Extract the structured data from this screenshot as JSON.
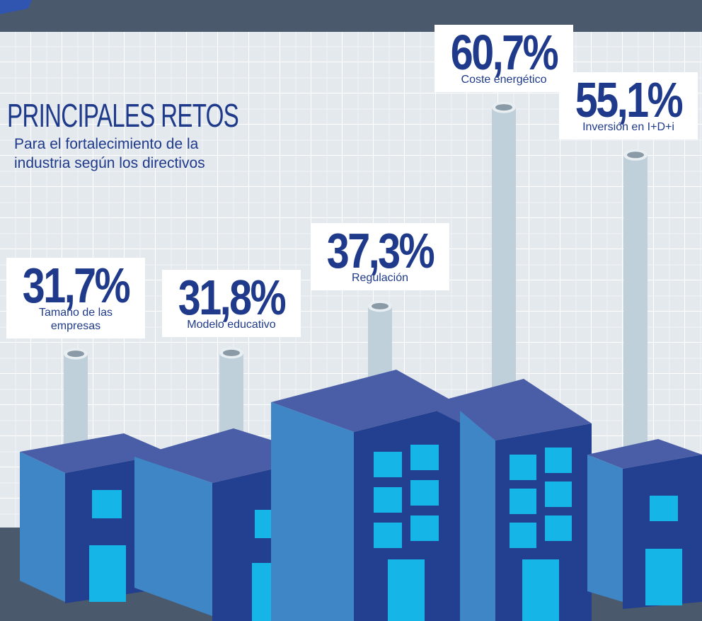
{
  "chart_data": {
    "type": "bar",
    "title": "PRINCIPALES RETOS",
    "subtitle": "Para el fortalecimiento de la industria según los directivos",
    "categories": [
      "Tamaño de las empresas",
      "Modelo educativo",
      "Regulación",
      "Coste energético",
      "Inversión en I+D+i"
    ],
    "values": [
      31.7,
      31.8,
      37.3,
      60.7,
      55.1
    ],
    "value_labels": [
      "31,7%",
      "31,8%",
      "37,3%",
      "60,7%",
      "55,1%"
    ],
    "color": "#bfd0da"
  }
}
